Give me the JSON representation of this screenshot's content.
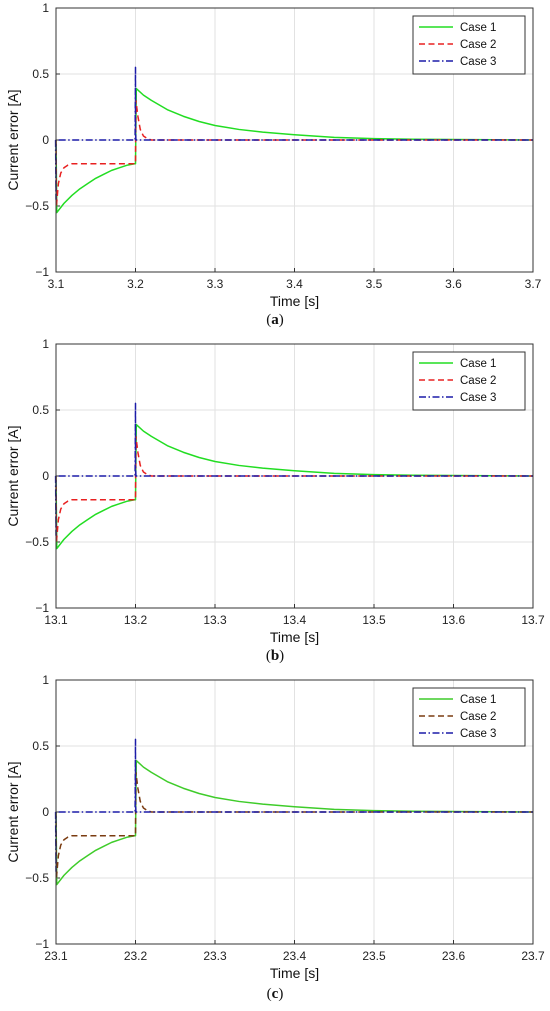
{
  "chart_data": [
    {
      "type": "line",
      "caption_letter": "a",
      "xlabel": "Time [s]",
      "ylabel": "Current error [A]",
      "xlim": [
        3.1,
        3.7
      ],
      "ylim": [
        -1,
        1
      ],
      "xticks": [
        "3.1",
        "3.2",
        "3.3",
        "3.4",
        "3.5",
        "3.6",
        "3.7"
      ],
      "yticks": [
        "-1",
        "-0.5",
        "0",
        "0.5",
        "1"
      ],
      "grid": true,
      "legend_position": "top-right",
      "series": [
        {
          "name": "Case 1",
          "color": "#22dd22",
          "style": "solid",
          "x": [
            3.1,
            3.101,
            3.11,
            3.12,
            3.13,
            3.14,
            3.15,
            3.16,
            3.17,
            3.18,
            3.19,
            3.199,
            3.2,
            3.201,
            3.21,
            3.22,
            3.24,
            3.26,
            3.28,
            3.3,
            3.33,
            3.36,
            3.4,
            3.45,
            3.5,
            3.55,
            3.6,
            3.65,
            3.7
          ],
          "y": [
            0,
            -0.55,
            -0.48,
            -0.42,
            -0.37,
            -0.33,
            -0.29,
            -0.26,
            -0.23,
            -0.21,
            -0.19,
            -0.18,
            -0.18,
            0.39,
            0.34,
            0.3,
            0.23,
            0.18,
            0.14,
            0.11,
            0.08,
            0.06,
            0.04,
            0.02,
            0.01,
            0.006,
            0.004,
            0.002,
            0
          ]
        },
        {
          "name": "Case 2",
          "color": "#e82020",
          "style": "dashed",
          "x": [
            3.1,
            3.1005,
            3.103,
            3.106,
            3.11,
            3.115,
            3.12,
            3.15,
            3.19,
            3.199,
            3.2,
            3.2005,
            3.203,
            3.206,
            3.21,
            3.215,
            3.22,
            3.3,
            3.4,
            3.5,
            3.6,
            3.7
          ],
          "y": [
            0,
            -0.5,
            -0.33,
            -0.25,
            -0.21,
            -0.19,
            -0.18,
            -0.18,
            -0.18,
            -0.18,
            -0.18,
            0.3,
            0.18,
            0.08,
            0.03,
            0.01,
            0,
            0,
            0,
            0,
            0,
            0
          ]
        },
        {
          "name": "Case 3",
          "color": "#1c1ca8",
          "style": "dashdot",
          "x": [
            3.0995,
            3.1,
            3.1,
            3.1005,
            3.1995,
            3.2,
            3.2,
            3.2005,
            3.7
          ],
          "y": [
            0,
            -0.45,
            0,
            0,
            0,
            0.55,
            0.1,
            0,
            0
          ]
        }
      ]
    },
    {
      "type": "line",
      "caption_letter": "b",
      "xlabel": "Time [s]",
      "ylabel": "Current error [A]",
      "xlim": [
        13.1,
        13.7
      ],
      "ylim": [
        -1,
        1
      ],
      "xticks": [
        "13.1",
        "13.2",
        "13.3",
        "13.4",
        "13.5",
        "13.6",
        "13.7"
      ],
      "yticks": [
        "-1",
        "-0.5",
        "0",
        "0.5",
        "1"
      ],
      "grid": true,
      "legend_position": "top-right",
      "series": [
        {
          "name": "Case 1",
          "color": "#22dd22",
          "style": "solid",
          "x": [
            13.1,
            13.101,
            13.11,
            13.12,
            13.13,
            13.14,
            13.15,
            13.16,
            13.17,
            13.18,
            13.19,
            13.199,
            13.2,
            13.201,
            13.21,
            13.22,
            13.24,
            13.26,
            13.28,
            13.3,
            13.33,
            13.36,
            13.4,
            13.45,
            13.5,
            13.55,
            13.6,
            13.65,
            13.7
          ],
          "y": [
            0,
            -0.55,
            -0.48,
            -0.42,
            -0.37,
            -0.33,
            -0.29,
            -0.26,
            -0.23,
            -0.21,
            -0.19,
            -0.18,
            -0.18,
            0.39,
            0.34,
            0.3,
            0.23,
            0.18,
            0.14,
            0.11,
            0.08,
            0.06,
            0.04,
            0.02,
            0.01,
            0.006,
            0.004,
            0.002,
            0
          ]
        },
        {
          "name": "Case 2",
          "color": "#e82020",
          "style": "dashed",
          "x": [
            13.1,
            13.1005,
            13.103,
            13.106,
            13.11,
            13.115,
            13.12,
            13.15,
            13.19,
            13.199,
            13.2,
            13.2005,
            13.203,
            13.206,
            13.21,
            13.215,
            13.22,
            13.3,
            13.4,
            13.5,
            13.6,
            13.7
          ],
          "y": [
            0,
            -0.5,
            -0.33,
            -0.25,
            -0.21,
            -0.19,
            -0.18,
            -0.18,
            -0.18,
            -0.18,
            -0.18,
            0.3,
            0.18,
            0.08,
            0.03,
            0.01,
            0,
            0,
            0,
            0,
            0,
            0
          ]
        },
        {
          "name": "Case 3",
          "color": "#1c1ca8",
          "style": "dashdot",
          "x": [
            13.0995,
            13.1,
            13.1,
            13.1005,
            13.1995,
            13.2,
            13.2,
            13.2005,
            13.7
          ],
          "y": [
            0,
            -0.45,
            0,
            0,
            0,
            0.55,
            0.1,
            0,
            0
          ]
        }
      ]
    },
    {
      "type": "line",
      "caption_letter": "c",
      "xlabel": "Time [s]",
      "ylabel": "Current error [A]",
      "xlim": [
        23.1,
        23.7
      ],
      "ylim": [
        -1,
        1
      ],
      "xticks": [
        "23.1",
        "23.2",
        "23.3",
        "23.4",
        "23.5",
        "23.6",
        "23.7"
      ],
      "yticks": [
        "-1",
        "-0.5",
        "0",
        "0.5",
        "1"
      ],
      "grid": true,
      "legend_position": "top-right",
      "series": [
        {
          "name": "Case 1",
          "color": "#3fcc2a",
          "style": "solid",
          "x": [
            23.1,
            23.101,
            23.11,
            23.12,
            23.13,
            23.14,
            23.15,
            23.16,
            23.17,
            23.18,
            23.19,
            23.199,
            23.2,
            23.201,
            23.21,
            23.22,
            23.24,
            23.26,
            23.28,
            23.3,
            23.33,
            23.36,
            23.4,
            23.45,
            23.5,
            23.55,
            23.6,
            23.65,
            23.7
          ],
          "y": [
            0,
            -0.55,
            -0.48,
            -0.42,
            -0.37,
            -0.33,
            -0.29,
            -0.26,
            -0.23,
            -0.21,
            -0.19,
            -0.18,
            -0.18,
            0.39,
            0.34,
            0.3,
            0.23,
            0.18,
            0.14,
            0.11,
            0.08,
            0.06,
            0.04,
            0.02,
            0.01,
            0.006,
            0.004,
            0.002,
            0
          ]
        },
        {
          "name": "Case 2",
          "color": "#7a3b10",
          "style": "dashed",
          "x": [
            23.1,
            23.1005,
            23.103,
            23.106,
            23.11,
            23.115,
            23.12,
            23.15,
            23.19,
            23.199,
            23.2,
            23.2005,
            23.203,
            23.206,
            23.21,
            23.215,
            23.22,
            23.3,
            23.4,
            23.5,
            23.6,
            23.7
          ],
          "y": [
            0,
            -0.5,
            -0.33,
            -0.25,
            -0.21,
            -0.19,
            -0.18,
            -0.18,
            -0.18,
            -0.18,
            -0.18,
            0.3,
            0.18,
            0.08,
            0.03,
            0.01,
            0,
            0,
            0,
            0,
            0,
            0
          ]
        },
        {
          "name": "Case 3",
          "color": "#1c1ca8",
          "style": "dashdot",
          "x": [
            23.0995,
            23.1,
            23.1,
            23.1005,
            23.1995,
            23.2,
            23.2,
            23.2005,
            23.7
          ],
          "y": [
            0,
            -0.45,
            0,
            0,
            0,
            0.55,
            0.1,
            0,
            0
          ]
        }
      ]
    }
  ]
}
